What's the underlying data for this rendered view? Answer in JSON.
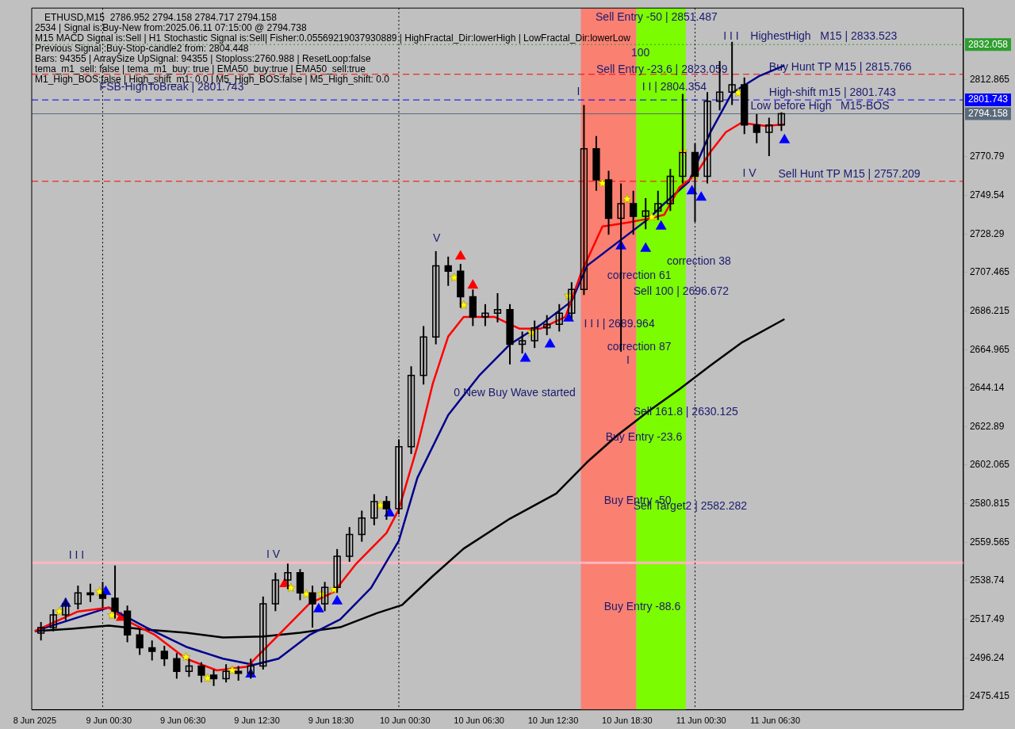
{
  "chart_data": {
    "type": "candlestick",
    "title": "ETHUSD,M15  2786.952 2794.158 2784.717 2794.158",
    "x": [
      "2025-06-08T19:00",
      "2025-06-08T20:00",
      "2025-06-08T21:00",
      "2025-06-08T22:00",
      "2025-06-08T23:00",
      "2025-06-09T00:00",
      "2025-06-09T01:00",
      "2025-06-09T02:00",
      "2025-06-09T03:00",
      "2025-06-09T04:00",
      "2025-06-09T05:00",
      "2025-06-09T06:00",
      "2025-06-09T07:00",
      "2025-06-09T08:00",
      "2025-06-09T09:00",
      "2025-06-09T10:00",
      "2025-06-09T11:00",
      "2025-06-09T12:00",
      "2025-06-09T13:00",
      "2025-06-09T14:00",
      "2025-06-09T15:00",
      "2025-06-09T16:00",
      "2025-06-09T17:00",
      "2025-06-09T18:00",
      "2025-06-09T19:00",
      "2025-06-09T20:00",
      "2025-06-09T21:00",
      "2025-06-09T22:00",
      "2025-06-09T23:00",
      "2025-06-10T00:00",
      "2025-06-10T01:00",
      "2025-06-10T02:00",
      "2025-06-10T03:00",
      "2025-06-10T04:00",
      "2025-06-10T05:00",
      "2025-06-10T06:00",
      "2025-06-10T07:00",
      "2025-06-10T08:00",
      "2025-06-10T09:00",
      "2025-06-10T10:00",
      "2025-06-10T11:00",
      "2025-06-10T12:00",
      "2025-06-10T13:00",
      "2025-06-10T14:00",
      "2025-06-10T15:00",
      "2025-06-10T16:00",
      "2025-06-10T17:00",
      "2025-06-10T18:00",
      "2025-06-10T19:00",
      "2025-06-10T20:00",
      "2025-06-10T21:00",
      "2025-06-10T22:00",
      "2025-06-10T23:00",
      "2025-06-11T00:00",
      "2025-06-11T01:00",
      "2025-06-11T02:00",
      "2025-06-11T03:00",
      "2025-06-11T04:00",
      "2025-06-11T05:00",
      "2025-06-11T06:00",
      "2025-06-11T07:00"
    ],
    "ohlc": [
      [
        2510,
        2516,
        2506,
        2513
      ],
      [
        2513,
        2523,
        2511,
        2520
      ],
      [
        2520,
        2529,
        2517,
        2526
      ],
      [
        2526,
        2536,
        2523,
        2532
      ],
      [
        2532,
        2537,
        2527,
        2531
      ],
      [
        2531,
        2538,
        2524,
        2529
      ],
      [
        2529,
        2547,
        2518,
        2522
      ],
      [
        2522,
        2525,
        2505,
        2509
      ],
      [
        2509,
        2512,
        2498,
        2502
      ],
      [
        2502,
        2506,
        2495,
        2500
      ],
      [
        2500,
        2503,
        2492,
        2496
      ],
      [
        2496,
        2499,
        2485,
        2489
      ],
      [
        2489,
        2496,
        2486,
        2492
      ],
      [
        2492,
        2494,
        2483,
        2487
      ],
      [
        2487,
        2490,
        2481,
        2485
      ],
      [
        2485,
        2493,
        2483,
        2489
      ],
      [
        2489,
        2492,
        2484,
        2488
      ],
      [
        2488,
        2496,
        2485,
        2492
      ],
      [
        2492,
        2530,
        2490,
        2526
      ],
      [
        2526,
        2543,
        2522,
        2539
      ],
      [
        2539,
        2548,
        2534,
        2543
      ],
      [
        2543,
        2545,
        2528,
        2532
      ],
      [
        2532,
        2536,
        2513,
        2526
      ],
      [
        2526,
        2538,
        2522,
        2535
      ],
      [
        2535,
        2556,
        2532,
        2552
      ],
      [
        2552,
        2568,
        2549,
        2564
      ],
      [
        2564,
        2577,
        2560,
        2573
      ],
      [
        2573,
        2586,
        2569,
        2582
      ],
      [
        2582,
        2585,
        2572,
        2578
      ],
      [
        2578,
        2616,
        2575,
        2612
      ],
      [
        2612,
        2656,
        2608,
        2651
      ],
      [
        2651,
        2678,
        2646,
        2672
      ],
      [
        2672,
        2719,
        2668,
        2711
      ],
      [
        2711,
        2716,
        2700,
        2708
      ],
      [
        2708,
        2712,
        2688,
        2694
      ],
      [
        2694,
        2698,
        2678,
        2683
      ],
      [
        2683,
        2690,
        2678,
        2685
      ],
      [
        2685,
        2696,
        2680,
        2687
      ],
      [
        2687,
        2690,
        2657,
        2668
      ],
      [
        2668,
        2675,
        2663,
        2670
      ],
      [
        2670,
        2681,
        2666,
        2677
      ],
      [
        2677,
        2684,
        2673,
        2679
      ],
      [
        2679,
        2690,
        2675,
        2685
      ],
      [
        2685,
        2702,
        2682,
        2698
      ],
      [
        2698,
        2799,
        2695,
        2775
      ],
      [
        2775,
        2782,
        2752,
        2758
      ],
      [
        2758,
        2763,
        2728,
        2737
      ],
      [
        2737,
        2756,
        2664,
        2745
      ],
      [
        2745,
        2752,
        2728,
        2738
      ],
      [
        2738,
        2748,
        2731,
        2741
      ],
      [
        2741,
        2752,
        2736,
        2745
      ],
      [
        2745,
        2764,
        2741,
        2760
      ],
      [
        2760,
        2805,
        2756,
        2773
      ],
      [
        2773,
        2778,
        2735,
        2760
      ],
      [
        2760,
        2806,
        2756,
        2801
      ],
      [
        2801,
        2823,
        2796,
        2806
      ],
      [
        2806,
        2833.5,
        2799,
        2810
      ],
      [
        2810,
        2814,
        2783,
        2788
      ],
      [
        2788,
        2794,
        2778,
        2784
      ],
      [
        2784,
        2792,
        2771,
        2788
      ],
      [
        2788,
        2795,
        2784.717,
        2794.158
      ]
    ],
    "color": "#000000",
    "series": [
      {
        "type": "line",
        "color": "#ff0000",
        "marker": "none",
        "x": [
          "2025-06-08T18:30",
          "2025-06-08T22:00",
          "2025-06-09T00:30",
          "2025-06-09T01:45",
          "2025-06-09T04:15",
          "2025-06-09T06:45",
          "2025-06-09T09:15",
          "2025-06-09T11:45",
          "2025-06-09T12:30",
          "2025-06-09T14:15",
          "2025-06-09T15:30",
          "2025-06-09T16:45",
          "2025-06-09T18:45",
          "2025-06-09T20:30",
          "2025-06-09T23:00",
          "2025-06-10T00:00",
          "2025-06-10T01:30",
          "2025-06-10T02:45",
          "2025-06-10T04:00",
          "2025-06-10T05:15",
          "2025-06-10T07:45",
          "2025-06-10T09:45",
          "2025-06-10T11:30",
          "2025-06-10T13:30",
          "2025-06-10T14:45",
          "2025-06-10T16:30",
          "2025-06-10T18:30",
          "2025-06-10T20:15",
          "2025-06-10T21:30",
          "2025-06-10T22:45",
          "2025-06-11T00:00",
          "2025-06-11T01:15",
          "2025-06-11T02:30",
          "2025-06-11T03:45",
          "2025-06-11T05:45",
          "2025-06-11T07:15"
        ],
        "values": [
          2511.1,
          2521.8,
          2524,
          2517.5,
          2508.9,
          2496,
          2489.6,
          2491.7,
          2497,
          2508.9,
          2517.5,
          2526.1,
          2532.6,
          2547.6,
          2564.8,
          2577.7,
          2612.1,
          2646.5,
          2672.3,
          2683,
          2683,
          2676.6,
          2676.6,
          2683,
          2706.7,
          2732.5,
          2734.6,
          2736.8,
          2738.9,
          2754,
          2760.4,
          2773.3,
          2784.1,
          2789.2,
          2787.5,
          2788.4
        ]
      },
      {
        "type": "line",
        "color": "#00008b",
        "marker": "none",
        "x": [
          "2025-06-08T18:30",
          "2025-06-08T21:30",
          "2025-06-09T00:30",
          "2025-06-09T03:30",
          "2025-06-09T06:45",
          "2025-06-09T09:45",
          "2025-06-09T12:15",
          "2025-06-09T14:15",
          "2025-06-09T16:45",
          "2025-06-09T19:15",
          "2025-06-09T21:45",
          "2025-06-10T00:00",
          "2025-06-10T01:30",
          "2025-06-10T04:00",
          "2025-06-10T06:30",
          "2025-06-10T09:00",
          "2025-06-10T11:30",
          "2025-06-10T14:00",
          "2025-06-10T15:15",
          "2025-06-10T17:45",
          "2025-06-10T20:15",
          "2025-06-10T21:30",
          "2025-06-10T23:30",
          "2025-06-11T01:15",
          "2025-06-11T03:00",
          "2025-06-11T05:15",
          "2025-06-11T07:15"
        ],
        "values": [
          2511.1,
          2517.5,
          2524,
          2513.2,
          2502.5,
          2496,
          2492.6,
          2496,
          2508.9,
          2517.5,
          2534.7,
          2560.5,
          2594.9,
          2629.3,
          2650.8,
          2668,
          2678.7,
          2691.6,
          2711,
          2723.9,
          2736.8,
          2745,
          2757,
          2784.1,
          2805.6,
          2815,
          2820.6
        ]
      },
      {
        "type": "line",
        "color": "#000000",
        "marker": "none",
        "x": [
          "2025-06-08T18:30",
          "2025-06-08T21:30",
          "2025-06-09T00:30",
          "2025-06-09T03:30",
          "2025-06-09T06:45",
          "2025-06-09T09:45",
          "2025-06-09T13:00",
          "2025-06-09T16:00",
          "2025-06-09T19:15",
          "2025-06-09T22:15",
          "2025-06-10T00:15",
          "2025-06-10T02:45",
          "2025-06-10T05:15",
          "2025-06-10T09:00",
          "2025-06-10T12:45",
          "2025-06-10T15:15",
          "2025-06-10T17:45",
          "2025-06-10T20:15",
          "2025-06-10T22:45",
          "2025-06-11T01:15",
          "2025-06-11T03:45",
          "2025-06-11T07:15"
        ],
        "values": [
          2511.1,
          2512.4,
          2514.1,
          2511.9,
          2510.2,
          2507.6,
          2508.1,
          2510.2,
          2513.2,
          2521,
          2525.3,
          2541.2,
          2556.2,
          2572.6,
          2586.3,
          2603.5,
          2618.5,
          2631.5,
          2643.5,
          2656.4,
          2668.8,
          2681.8
        ]
      },
      {
        "type": "scatter",
        "color": "#ffff00",
        "marker": "star",
        "x": [
          "2025-06-08T20:30",
          "2025-06-08T23:45",
          "2025-06-09T00:45",
          "2025-06-09T06:45",
          "2025-06-09T08:30",
          "2025-06-09T10:30",
          "2025-06-09T15:15",
          "2025-06-09T16:30",
          "2025-06-09T17:45",
          "2025-06-09T18:45",
          "2025-06-09T22:30",
          "2025-06-10T04:30",
          "2025-06-10T05:15",
          "2025-06-10T10:45",
          "2025-06-10T13:45",
          "2025-06-10T16:30",
          "2025-06-10T18:30",
          "2025-06-10T20:30",
          "2025-06-10T23:00",
          "2025-06-11T00:00",
          "2025-06-11T03:30"
        ],
        "values": [
          2521.8,
          2532.6,
          2519.7,
          2496.9,
          2485.3,
          2489.6,
          2534.7,
          2531.3,
          2531.3,
          2533.9,
          2579.9,
          2704.5,
          2689.5,
          2674.4,
          2694.6,
          2756.1,
          2747.5,
          2737.6,
          2773.3,
          2760.4,
          2805.6
        ]
      },
      {
        "type": "scatter",
        "color": "#0000ff",
        "marker": "triangle",
        "x": [
          "2025-06-08T21:00",
          "2025-06-09T00:15",
          "2025-06-09T12:00",
          "2025-06-09T17:30",
          "2025-06-09T19:00",
          "2025-06-09T23:15",
          "2025-06-10T10:15",
          "2025-06-10T12:15",
          "2025-06-10T13:45",
          "2025-06-10T18:00",
          "2025-06-10T20:00",
          "2025-06-10T21:15",
          "2025-06-10T23:45",
          "2025-06-11T00:30",
          "2025-06-11T07:15"
        ],
        "values": [
          2526.1,
          2532.6,
          2487.4,
          2523.1,
          2527.4,
          2575.6,
          2660.2,
          2668,
          2682.2,
          2721.7,
          2720.4,
          2732.5,
          2751.8,
          2748.4,
          2779.8
        ]
      },
      {
        "type": "scatter",
        "color": "#ff0000",
        "marker": "triangle",
        "x": [
          "2025-06-09T01:30",
          "2025-06-09T14:45",
          "2025-06-10T05:00",
          "2025-06-10T06:00"
        ],
        "values": [
          2518.4,
          2536.9,
          2716.1,
          2700.2
        ]
      }
    ],
    "xlim": [
      "2025-06-08T18:15",
      "2025-06-11T21:45"
    ],
    "xticks": [
      {
        "value": "2025-06-08T18:30",
        "label": "8 Jun 2025"
      },
      {
        "value": "2025-06-09T00:30",
        "label": "9 Jun 00:30"
      },
      {
        "value": "2025-06-09T06:30",
        "label": "9 Jun 06:30"
      },
      {
        "value": "2025-06-09T12:30",
        "label": "9 Jun 12:30"
      },
      {
        "value": "2025-06-09T18:30",
        "label": "9 Jun 18:30"
      },
      {
        "value": "2025-06-10T00:30",
        "label": "10 Jun 00:30"
      },
      {
        "value": "2025-06-10T06:30",
        "label": "10 Jun 06:30"
      },
      {
        "value": "2025-06-10T12:30",
        "label": "10 Jun 12:30"
      },
      {
        "value": "2025-06-10T18:30",
        "label": "10 Jun 18:30"
      },
      {
        "value": "2025-06-11T00:30",
        "label": "11 Jun 00:30"
      },
      {
        "value": "2025-06-11T06:30",
        "label": "11 Jun 06:30"
      }
    ],
    "ylim": [
      2468,
      2852
    ],
    "yticks": [
      2475.415,
      2496.24,
      2517.49,
      2538.74,
      2559.565,
      2580.815,
      2602.065,
      2622.89,
      2644.14,
      2664.965,
      2686.215,
      2707.465,
      2728.29,
      2749.54,
      2770.79,
      2812.865
    ],
    "grid": false,
    "legend": false,
    "bands": [
      {
        "axis": "x",
        "from": "2025-06-10T14:45",
        "to": "2025-06-10T19:15",
        "color": "#fa8072"
      },
      {
        "axis": "x",
        "from": "2025-06-10T19:15",
        "to": "2025-06-10T23:15",
        "color": "#7cfc00"
      }
    ],
    "ref_lines": [
      {
        "axis": "y",
        "value": 2832.058,
        "label": "2832.058",
        "color": "#2e9e2e",
        "line_style": "dotted"
      },
      {
        "axis": "y",
        "value": 2801.743,
        "label": "2801.743",
        "color": "#0000ff",
        "line_style": "dashed"
      },
      {
        "axis": "y",
        "value": 2794.158,
        "label": "2794.158",
        "color": "#5a6a7a",
        "line_style": "solid"
      },
      {
        "axis": "y",
        "value": 2815.766,
        "color": "#ff0000",
        "line_style": "dashed"
      },
      {
        "axis": "y",
        "value": 2757.209,
        "color": "#ff0000",
        "line_style": "dashed"
      },
      {
        "axis": "y",
        "value": 2548.5,
        "color": "#ffb6c1",
        "line_style": "solid"
      },
      {
        "axis": "x",
        "value": "2025-06-09T00:00",
        "color": "#000000",
        "line_style": "dotted"
      },
      {
        "axis": "x",
        "value": "2025-06-10T00:00",
        "color": "#000000",
        "line_style": "dotted"
      },
      {
        "axis": "x",
        "value": "2025-06-11T00:00",
        "color": "#000000",
        "line_style": "dotted"
      }
    ],
    "annotations": [
      "2534 | Signal is:Buy-New from:2025.06.11 07:15:00 @ 2794.738",
      "M15 MACD Signal is:Sell | H1 Stochastic Signal is:Sell| Fisher:0.05569219037930889 | HighFractal_Dir:lowerHigh | LowFractal_Dir:lowerLow",
      "Previous Signal :Buy-Stop-candle2 from: 2804.448",
      "Bars: 94355 | ArraySize UpSignal: 94355 | Stoploss:2760.988 | ResetLoop:false",
      "tema_m1_sell: false | tema_m1_buy: true | EMA50_buy:true | EMA50_sell:true",
      "M1_High_BOS:false | High_shift_m1: 0.0 | M5_High_BOS:false | M5_High_shift: 0.0",
      {
        "text": "FSB-HighToBreak | 2801.743",
        "x": "2025-06-08T23:45",
        "y": 2804.7
      },
      "Sell Entry -50 | 2851.487",
      "100",
      "Sell Entry -23.6 | 2823.059",
      "I I | 2804.354",
      "I I I",
      "HighestHigh   M15 | 2833.523",
      "I V",
      "I",
      "V",
      "correction 61",
      "correction 87",
      "I",
      "0 New Buy Wave started",
      "Buy Entry -23.6",
      "Buy Entry -50",
      "Buy Entry -88.6",
      "I V",
      "correction 38",
      {
        "text": "Buy Hunt TP M15 | 2815.766",
        "x": "2025-06-11T06:00",
        "y": 2815.766
      },
      {
        "text": "High-shift m15 | 2801.743",
        "x": "2025-06-11T06:00",
        "y": 2801.743
      },
      {
        "text": "Low before High   M15-BOS",
        "x": "2025-06-11T04:30",
        "y": 2794.158
      },
      {
        "text": "Sell Hunt TP M15 | 2757.209",
        "x": "2025-06-11T06:45",
        "y": 2757.209
      },
      {
        "text": "Sell 100 | 2696.672",
        "x": "2025-06-10T19:00",
        "y": 2692.9
      },
      {
        "text": "I I I | 2689.964",
        "x": "2025-06-10T15:00",
        "y": 2675.3
      },
      {
        "text": "Sell 161.8 | 2630.125",
        "x": "2025-06-10T19:00",
        "y": 2627.1
      },
      {
        "text": "Sell Target2 | 2582.282",
        "x": "2025-06-10T19:00",
        "y": 2575.6
      },
      {
        "text": "I I I",
        "x": "2025-06-08T21:15",
        "y": 2548.5
      }
    ]
  }
}
